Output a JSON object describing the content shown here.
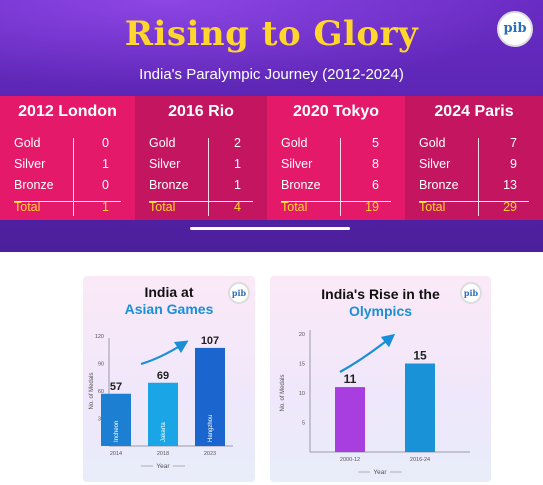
{
  "banner": {
    "title": "Rising to Glory",
    "subtitle": "India's Paralympic Journey (2012-2024)",
    "logo": "pib",
    "games": [
      {
        "name": "2012 London",
        "gold": "0",
        "silver": "1",
        "bronze": "0",
        "total": "1"
      },
      {
        "name": "2016 Rio",
        "gold": "2",
        "silver": "1",
        "bronze": "1",
        "total": "4"
      },
      {
        "name": "2020 Tokyo",
        "gold": "5",
        "silver": "8",
        "bronze": "6",
        "total": "19"
      },
      {
        "name": "2024 Paris",
        "gold": "7",
        "silver": "9",
        "bronze": "13",
        "total": "29"
      }
    ],
    "labels": {
      "gold": "Gold",
      "silver": "Silver",
      "bronze": "Bronze",
      "total": "Total"
    },
    "colors": {
      "background": "#5a25b2",
      "title": "#ffd62e",
      "pink": "#e5196a",
      "magenta": "#c41560"
    }
  },
  "chart_data": [
    {
      "type": "bar",
      "title_line1": "India at",
      "title_line2": "Asian Games",
      "logo": "pib",
      "categories": [
        "2014",
        "2018",
        "2023"
      ],
      "bar_labels": [
        "Incheon",
        "Jakarta",
        "Hangzhou"
      ],
      "values": [
        57,
        69,
        107
      ],
      "value_labels": [
        "57",
        "69",
        "107"
      ],
      "yticks": [
        "30",
        "60",
        "90",
        "120"
      ],
      "xlabel": "Year",
      "ylabel": "No. of Medals",
      "ylim": [
        0,
        120
      ],
      "grid": false,
      "colors": [
        "#1d7fd1",
        "#1aa6e6",
        "#1b65cf"
      ]
    },
    {
      "type": "bar",
      "title_line1": "India's Rise in the",
      "title_line2": "Olympics",
      "logo": "pib",
      "categories": [
        "2000-12",
        "2016-24"
      ],
      "values": [
        11,
        15
      ],
      "value_labels": [
        "11",
        "15"
      ],
      "yticks": [
        "5",
        "10",
        "15",
        "20"
      ],
      "xlabel": "Year",
      "ylabel": "No. of Medals",
      "ylim": [
        0,
        20
      ],
      "grid": false,
      "colors": [
        "#a93ee0",
        "#1a92d8"
      ]
    }
  ]
}
